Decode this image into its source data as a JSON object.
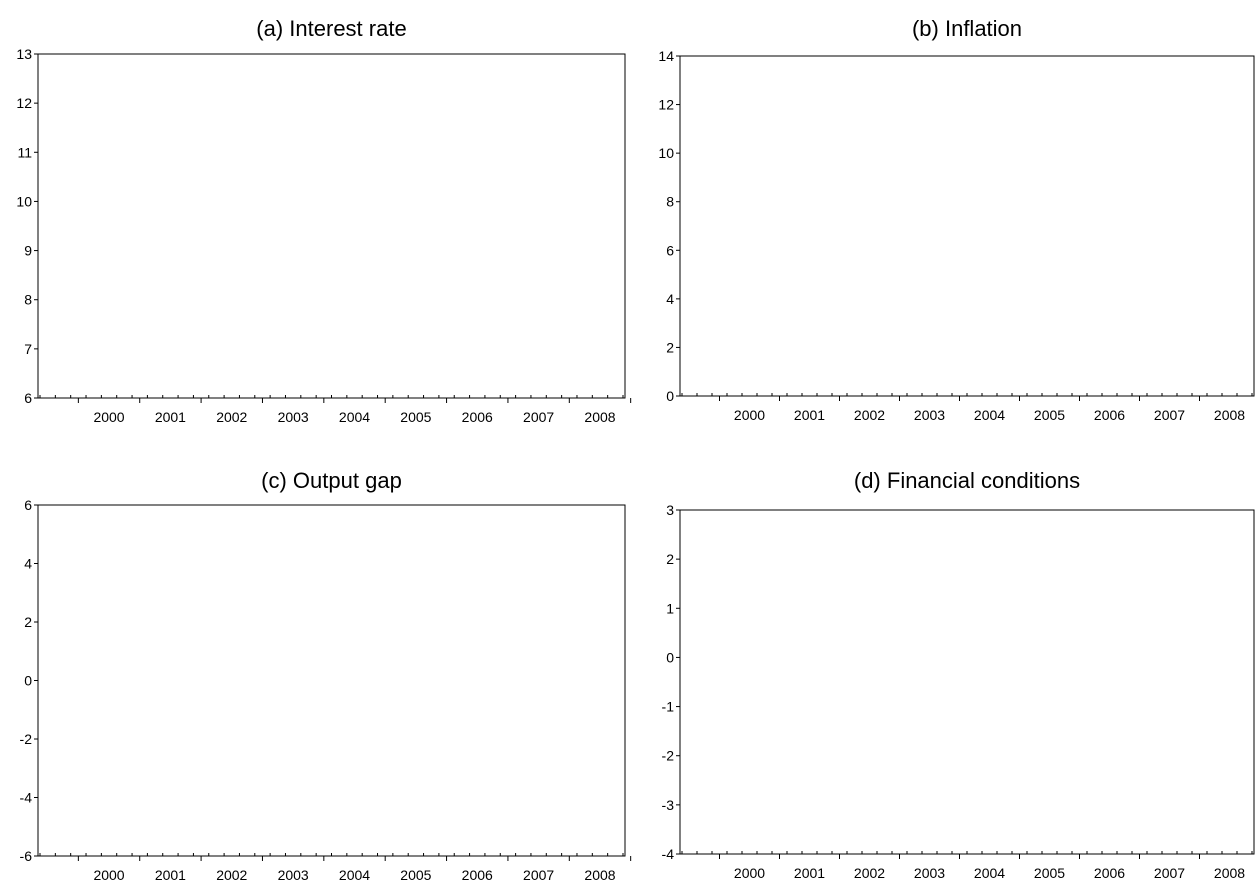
{
  "chart_data": [
    {
      "type": "line",
      "title": "(a) Interest rate",
      "x_categories": [
        "2000",
        "2001",
        "2002",
        "2003",
        "2004",
        "2005",
        "2006",
        "2007",
        "2008"
      ],
      "yticks": [
        "6",
        "7",
        "8",
        "9",
        "10",
        "11",
        "12",
        "13"
      ],
      "ylim": [
        6,
        13
      ],
      "grid": false,
      "series": []
    },
    {
      "type": "line",
      "title": "(b) Inflation",
      "x_categories": [
        "2000",
        "2001",
        "2002",
        "2003",
        "2004",
        "2005",
        "2006",
        "2007",
        "2008"
      ],
      "yticks": [
        "0",
        "2",
        "4",
        "6",
        "8",
        "10",
        "12",
        "14"
      ],
      "ylim": [
        0,
        14
      ],
      "grid": false,
      "series": []
    },
    {
      "type": "line",
      "title": "(c) Output gap",
      "x_categories": [
        "2000",
        "2001",
        "2002",
        "2003",
        "2004",
        "2005",
        "2006",
        "2007",
        "2008"
      ],
      "yticks": [
        "-6",
        "-4",
        "-2",
        "0",
        "2",
        "4",
        "6"
      ],
      "ylim": [
        -6,
        6
      ],
      "grid": false,
      "series": []
    },
    {
      "type": "line",
      "title": "(d) Financial conditions",
      "x_categories": [
        "2000",
        "2001",
        "2002",
        "2003",
        "2004",
        "2005",
        "2006",
        "2007",
        "2008"
      ],
      "yticks": [
        "-4",
        "-3",
        "-2",
        "-1",
        "0",
        "1",
        "2",
        "3"
      ],
      "ylim": [
        -4,
        3
      ],
      "grid": false,
      "series": []
    }
  ]
}
